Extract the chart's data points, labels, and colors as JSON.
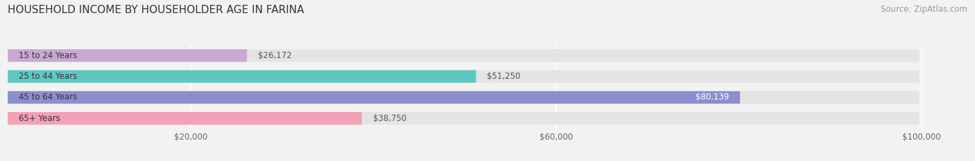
{
  "title": "HOUSEHOLD INCOME BY HOUSEHOLDER AGE IN FARINA",
  "source": "Source: ZipAtlas.com",
  "categories": [
    "15 to 24 Years",
    "25 to 44 Years",
    "45 to 64 Years",
    "65+ Years"
  ],
  "values": [
    26172,
    51250,
    80139,
    38750
  ],
  "bar_colors": [
    "#c9a8d4",
    "#5ec8c0",
    "#8b8fcd",
    "#f4a0b5"
  ],
  "bar_labels": [
    "$26,172",
    "$51,250",
    "$80,139",
    "$38,750"
  ],
  "label_inside": [
    false,
    false,
    true,
    false
  ],
  "xlim": [
    0,
    105000
  ],
  "xticks": [
    20000,
    60000,
    100000
  ],
  "xticklabels": [
    "$20,000",
    "$60,000",
    "$100,000"
  ],
  "background_color": "#f2f2f2",
  "bar_bg_color": "#e4e4e4",
  "title_fontsize": 11,
  "source_fontsize": 8.5,
  "bar_height": 0.6,
  "rounding": 0.28
}
